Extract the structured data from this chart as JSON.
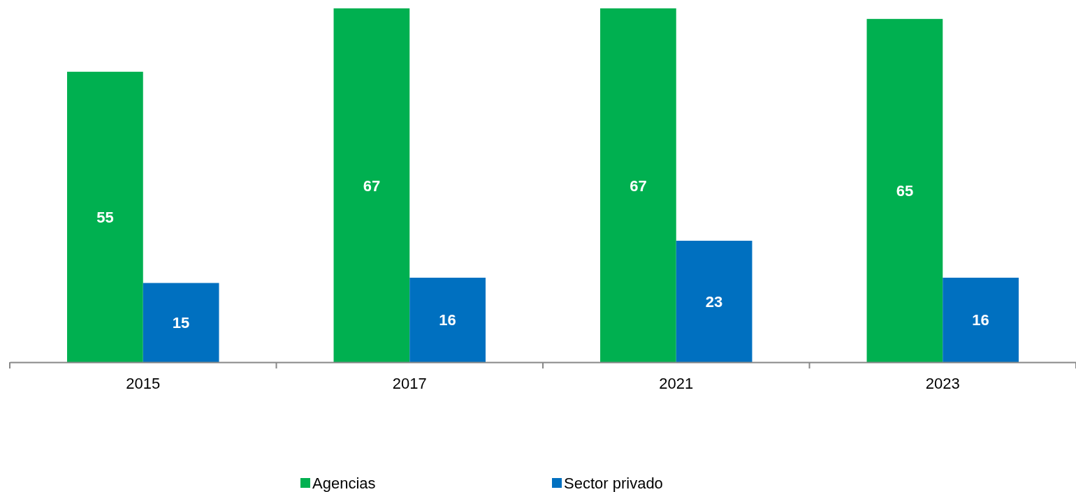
{
  "chart_data": {
    "type": "bar",
    "categories": [
      "2015",
      "2017",
      "2021",
      "2023"
    ],
    "series": [
      {
        "name": "Agencias",
        "color": "#00b050",
        "values": [
          55,
          67,
          67,
          65
        ]
      },
      {
        "name": "Sector privado",
        "color": "#0070c0",
        "values": [
          15,
          16,
          23,
          16
        ]
      }
    ],
    "data_labels": true,
    "legend": "bottom",
    "grid": false
  }
}
